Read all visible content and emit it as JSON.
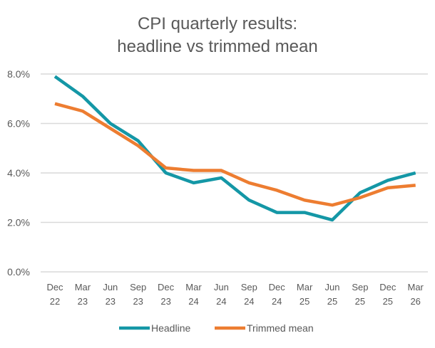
{
  "chart_data": {
    "type": "line",
    "title_lines": [
      "CPI quarterly results:",
      "headline vs trimmed mean"
    ],
    "categories": [
      [
        "Dec",
        "22"
      ],
      [
        "Mar",
        "23"
      ],
      [
        "Jun",
        "23"
      ],
      [
        "Sep",
        "23"
      ],
      [
        "Dec",
        "23"
      ],
      [
        "Mar",
        "24"
      ],
      [
        "Jun",
        "24"
      ],
      [
        "Sep",
        "24"
      ],
      [
        "Dec",
        "24"
      ],
      [
        "Mar",
        "25"
      ],
      [
        "Jun",
        "25"
      ],
      [
        "Sep",
        "25"
      ],
      [
        "Dec",
        "25"
      ],
      [
        "Mar",
        "26"
      ]
    ],
    "yticks": [
      "0.0%",
      "2.0%",
      "4.0%",
      "6.0%",
      "8.0%"
    ],
    "ylim": [
      0,
      8
    ],
    "grid": true,
    "legend_position": "bottom",
    "series": [
      {
        "name": "Headline",
        "color": "#1497a6",
        "values": [
          7.9,
          7.1,
          6.0,
          5.3,
          4.0,
          3.6,
          3.8,
          2.9,
          2.4,
          2.4,
          2.1,
          3.2,
          3.7,
          4.0
        ]
      },
      {
        "name": "Trimmed mean",
        "color": "#ed7d31",
        "values": [
          6.8,
          6.5,
          5.8,
          5.1,
          4.2,
          4.1,
          4.1,
          3.6,
          3.3,
          2.9,
          2.7,
          3.0,
          3.4,
          3.5
        ]
      }
    ]
  }
}
